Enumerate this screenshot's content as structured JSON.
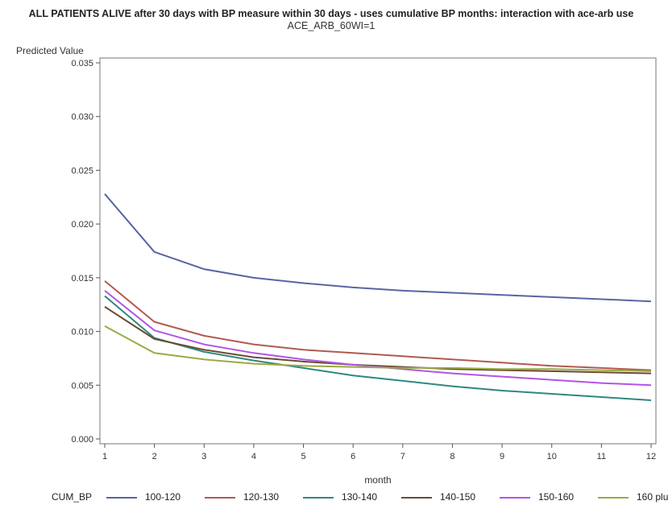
{
  "chart_data": {
    "type": "line",
    "title": "ALL PATIENTS ALIVE after 30 days with BP measure within 30 days - uses cumulative BP months: interaction with ace-arb use",
    "subtitle": "ACE_ARB_60WI=1",
    "xlabel": "month",
    "ylabel": "Predicted Value",
    "x": [
      1,
      2,
      3,
      4,
      5,
      6,
      7,
      8,
      9,
      10,
      11,
      12
    ],
    "xlim": [
      1,
      12
    ],
    "ylim": [
      0,
      0.035
    ],
    "yticks": [
      "0.000",
      "0.005",
      "0.010",
      "0.015",
      "0.020",
      "0.025",
      "0.030",
      "0.035"
    ],
    "xticks": [
      "1",
      "2",
      "3",
      "4",
      "5",
      "6",
      "7",
      "8",
      "9",
      "10",
      "11",
      "12"
    ],
    "grid": false,
    "legend": {
      "title": "CUM_BP",
      "placement": "bottom"
    },
    "series": [
      {
        "name": "100-120",
        "color": "#5865a3",
        "values": [
          0.0228,
          0.0174,
          0.0158,
          0.015,
          0.0145,
          0.0141,
          0.0138,
          0.0136,
          0.0134,
          0.0132,
          0.013,
          0.0128
        ]
      },
      {
        "name": "120-130",
        "color": "#b05a52",
        "values": [
          0.0147,
          0.0109,
          0.0096,
          0.0088,
          0.0083,
          0.008,
          0.0077,
          0.0074,
          0.0071,
          0.0068,
          0.0066,
          0.0064
        ]
      },
      {
        "name": "130-140",
        "color": "#2f8880",
        "values": [
          0.0133,
          0.0094,
          0.0081,
          0.0073,
          0.0066,
          0.0059,
          0.0054,
          0.0049,
          0.0045,
          0.0042,
          0.0039,
          0.0036
        ]
      },
      {
        "name": "140-150",
        "color": "#6b4a33",
        "values": [
          0.0123,
          0.0093,
          0.0083,
          0.0076,
          0.0072,
          0.0069,
          0.0067,
          0.0065,
          0.0064,
          0.0063,
          0.0062,
          0.0061
        ]
      },
      {
        "name": "150-160",
        "color": "#b254e6",
        "values": [
          0.0138,
          0.0101,
          0.0088,
          0.008,
          0.0074,
          0.0069,
          0.0065,
          0.0061,
          0.0058,
          0.0055,
          0.0052,
          0.005
        ]
      },
      {
        "name": "160 plu",
        "color": "#9aaa44",
        "values": [
          0.0105,
          0.008,
          0.0074,
          0.007,
          0.0068,
          0.0067,
          0.0066,
          0.0066,
          0.0065,
          0.0065,
          0.0064,
          0.0063
        ]
      }
    ]
  }
}
